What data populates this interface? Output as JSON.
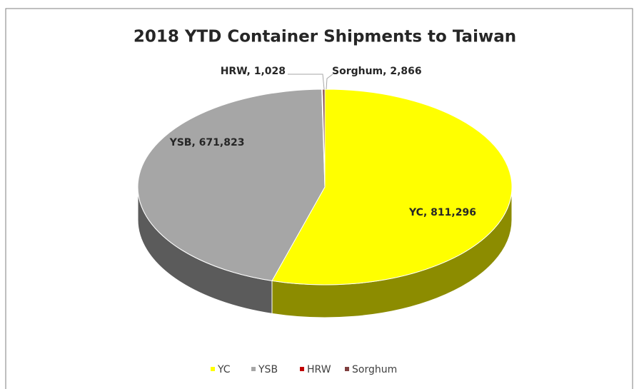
{
  "chart_data": {
    "type": "pie",
    "title": "2018 YTD Container Shipments to Taiwan",
    "categories": [
      "YC",
      "YSB",
      "HRW",
      "Sorghum"
    ],
    "values": [
      811296,
      671823,
      1028,
      2866
    ],
    "value_labels": [
      "811,296",
      "671,823",
      "1,028",
      "2,866"
    ],
    "colors": [
      "#ffff00",
      "#a6a6a6",
      "#c00000",
      "#7f3f3f"
    ],
    "legend": "bottom"
  }
}
